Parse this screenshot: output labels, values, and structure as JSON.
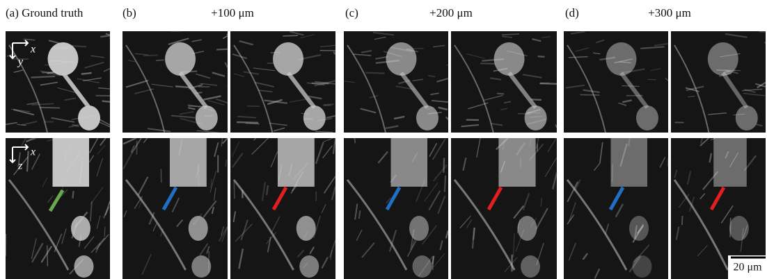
{
  "panels": [
    {
      "label": "(a) Ground truth"
    },
    {
      "label": "(b)",
      "depth": "+100 μm"
    },
    {
      "label": "(c)",
      "depth": "+200 μm"
    },
    {
      "label": "(d)",
      "depth": "+300 μm"
    }
  ],
  "axes": {
    "top": {
      "horizontal": "x",
      "vertical": "y"
    },
    "bottom": {
      "horizontal": "x",
      "vertical": "z"
    }
  },
  "scale_bar": "20 μm"
}
